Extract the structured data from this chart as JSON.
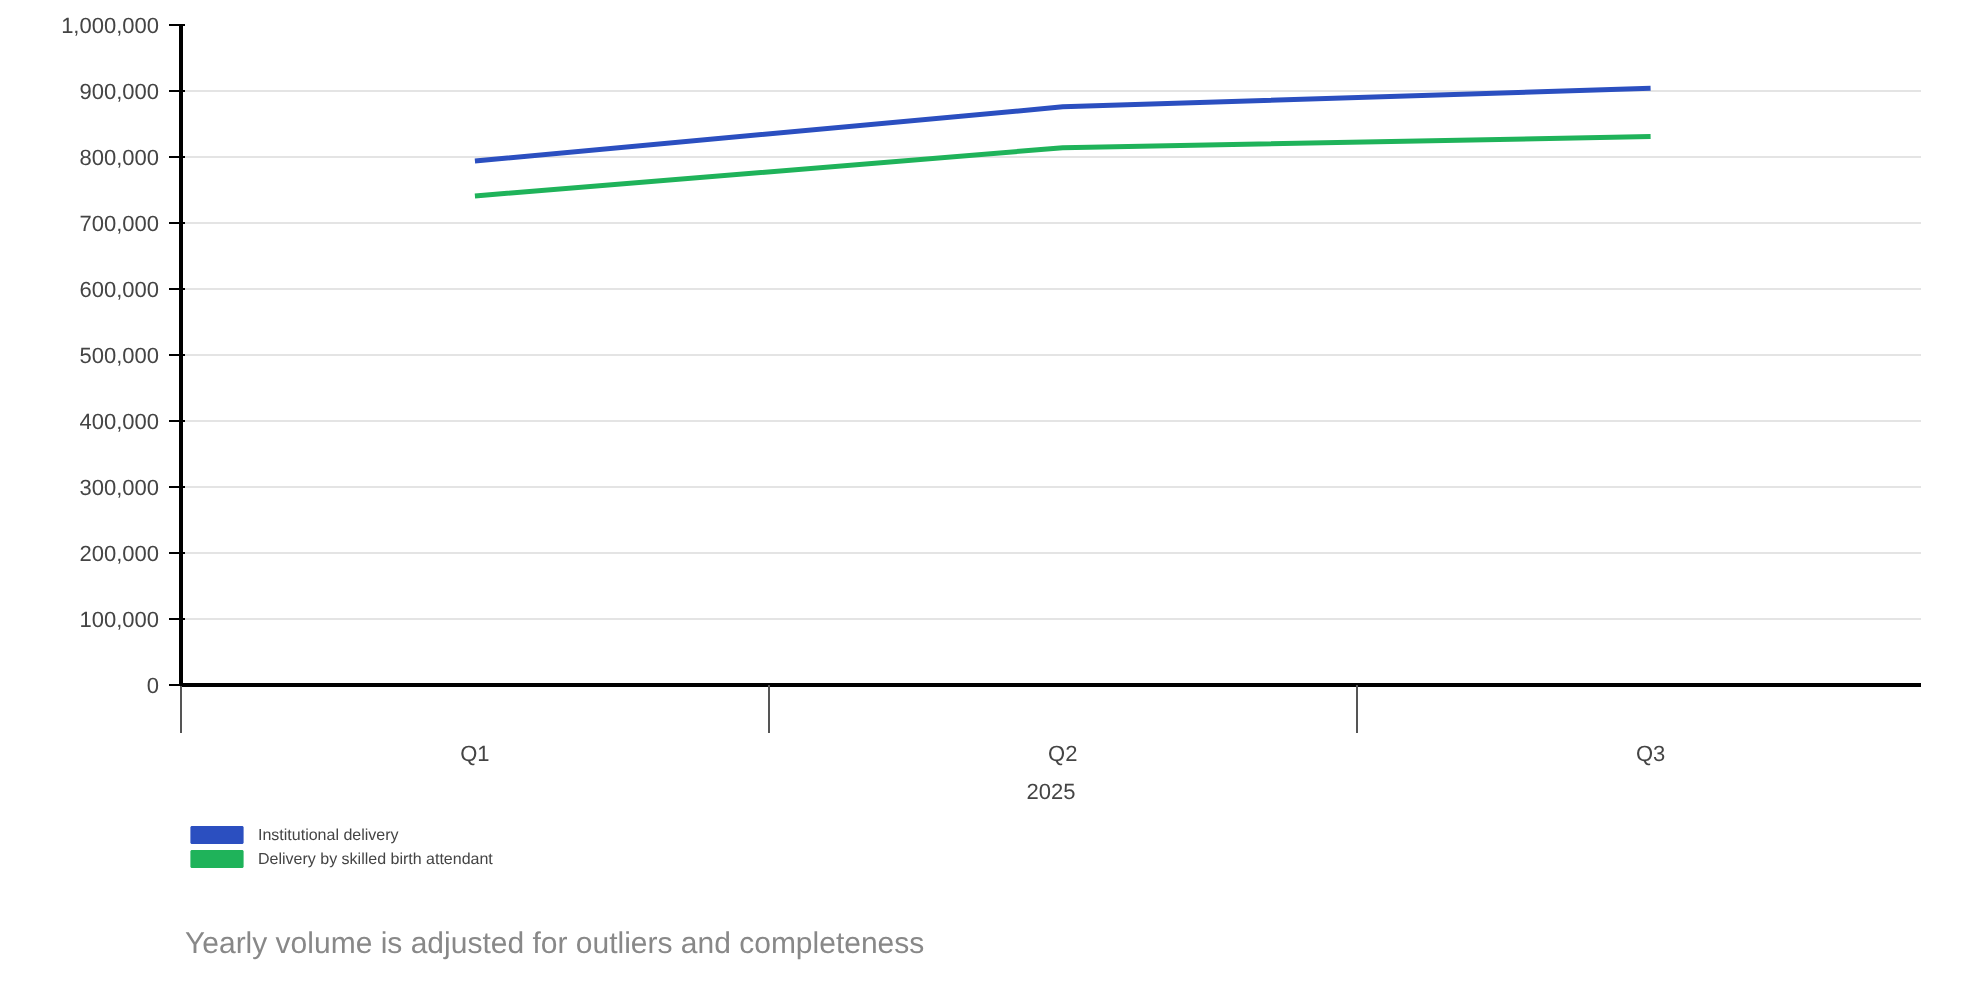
{
  "chart_data": {
    "type": "line",
    "categories": [
      "Q1",
      "Q2",
      "Q3"
    ],
    "xlabel": "2025",
    "series": [
      {
        "name": "Institutional delivery",
        "color": "#2b4fc0",
        "values": [
          794000,
          876000,
          904000
        ]
      },
      {
        "name": "Delivery by skilled birth attendant",
        "color": "#1fb35a",
        "values": [
          741000,
          814000,
          831000
        ]
      }
    ],
    "ylim": [
      0,
      1000000
    ],
    "yticks": [
      {
        "value": 0,
        "label": "0"
      },
      {
        "value": 100000,
        "label": "100,000"
      },
      {
        "value": 200000,
        "label": "200,000"
      },
      {
        "value": 300000,
        "label": "300,000"
      },
      {
        "value": 400000,
        "label": "400,000"
      },
      {
        "value": 500000,
        "label": "500,000"
      },
      {
        "value": 600000,
        "label": "600,000"
      },
      {
        "value": 700000,
        "label": "700,000"
      },
      {
        "value": 800000,
        "label": "800,000"
      },
      {
        "value": 900000,
        "label": "900,000"
      },
      {
        "value": 1000000,
        "label": "1,000,000"
      }
    ],
    "grid": "y",
    "legend": "bottom left",
    "marker": "none",
    "line_style": "solid",
    "annotations": [
      "Yearly volume is adjusted for outliers and completeness"
    ]
  }
}
